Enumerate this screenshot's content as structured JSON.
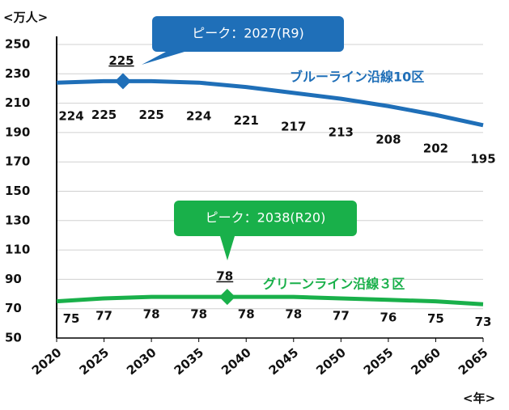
{
  "chart_data": {
    "type": "line",
    "y_unit": "<万人>",
    "x_unit": "<年>",
    "x": [
      2020,
      2025,
      2030,
      2035,
      2040,
      2045,
      2050,
      2055,
      2060,
      2065
    ],
    "xlim": [
      2020,
      2065
    ],
    "xticks": [
      2020,
      2025,
      2030,
      2035,
      2040,
      2045,
      2050,
      2055,
      2060,
      2065
    ],
    "ylim": [
      50,
      250
    ],
    "yticks": [
      50,
      70,
      90,
      110,
      130,
      150,
      170,
      190,
      210,
      230,
      250
    ],
    "grid": true,
    "series": [
      {
        "name": "ブルーライン沿線10区",
        "color": "#1f6fb8",
        "values": [
          224,
          225,
          225,
          224,
          221,
          217,
          213,
          208,
          202,
          195
        ],
        "peak": {
          "x": 2027,
          "value": 225,
          "label": "ピーク：2027(R9)"
        }
      },
      {
        "name": "グリーンライン沿線３区",
        "color": "#19b04a",
        "values": [
          75,
          77,
          78,
          78,
          78,
          78,
          77,
          76,
          75,
          73
        ],
        "peak": {
          "x": 2038,
          "value": 78,
          "label": "ピーク：2038(R20)"
        }
      }
    ]
  }
}
